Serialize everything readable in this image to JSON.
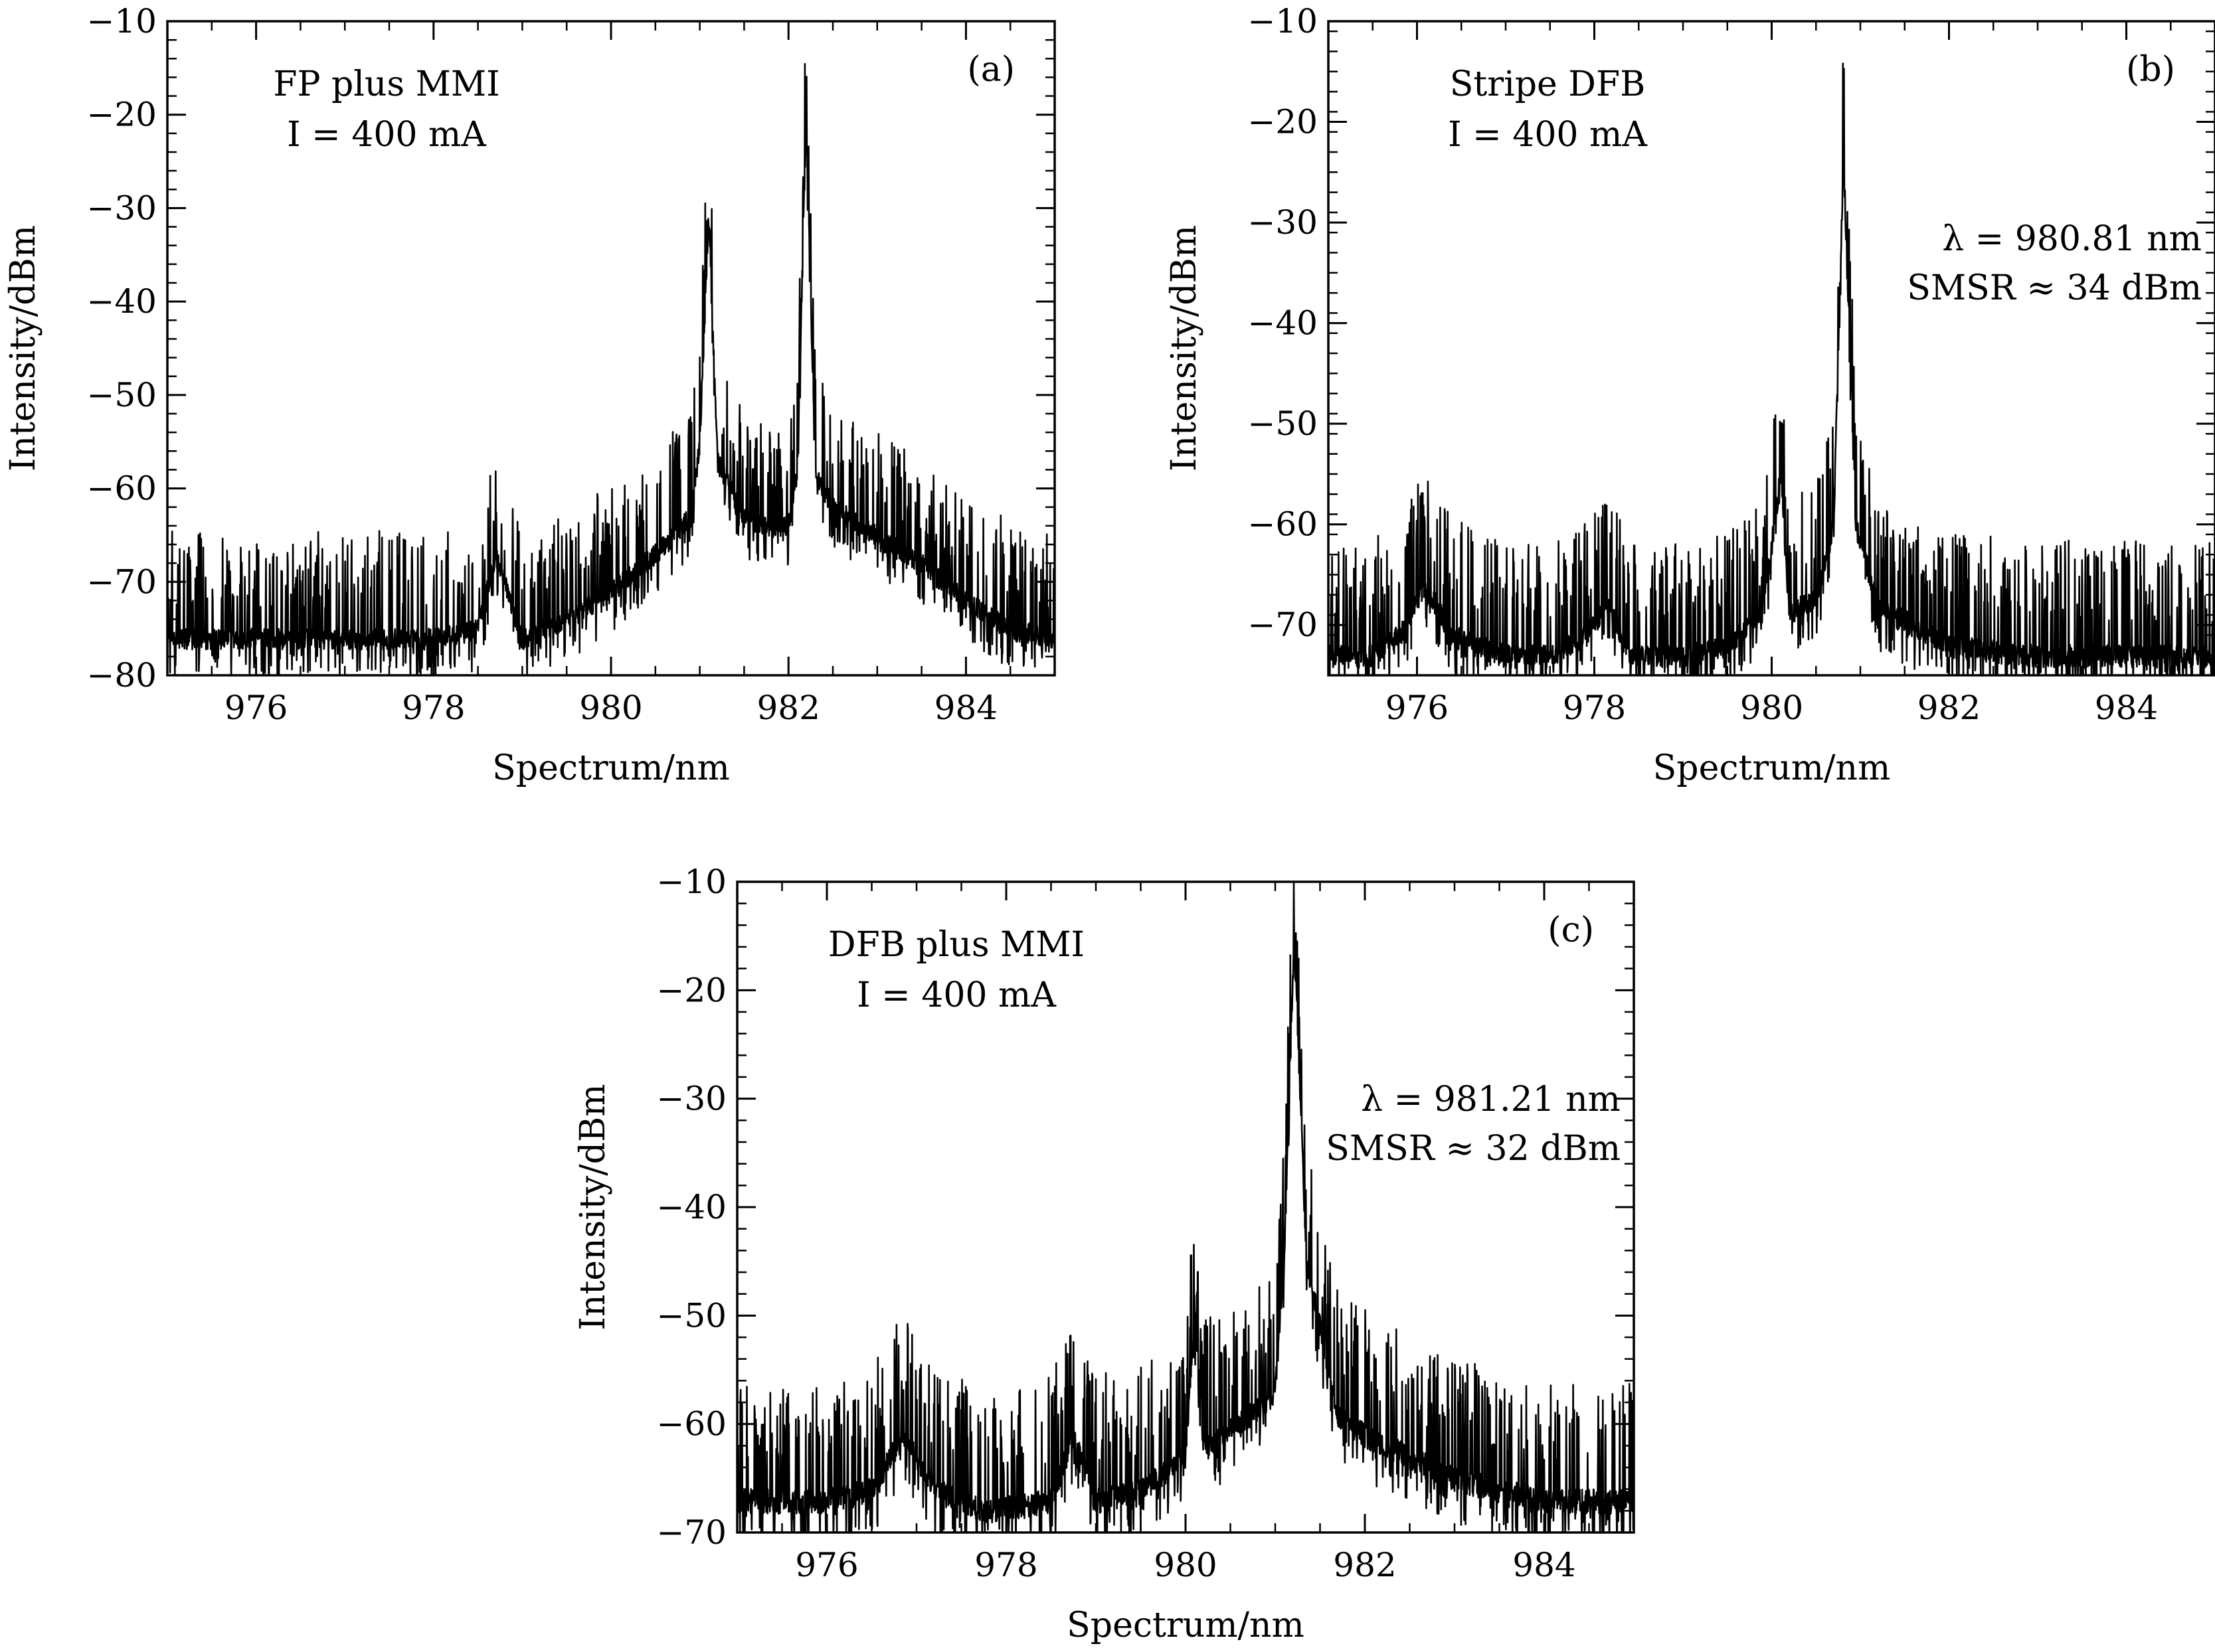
{
  "figure": {
    "panels": [
      {
        "id": "a",
        "panel_label": "(a)",
        "annotation_lines": [
          "FP plus MMI",
          "I = 400 mA"
        ],
        "right_annotation_lines": [],
        "xlabel": "Spectrum/nm",
        "ylabel": "Intensity/dBm"
      },
      {
        "id": "b",
        "panel_label": "(b)",
        "annotation_lines": [
          "Stripe DFB",
          "I = 400 mA"
        ],
        "right_annotation_lines": [
          "λ = 980.81 nm",
          "SMSR ≈ 34 dBm"
        ],
        "xlabel": "Spectrum/nm",
        "ylabel": "Intensity/dBm"
      },
      {
        "id": "c",
        "panel_label": "(c)",
        "annotation_lines": [
          "DFB plus MMI",
          "I = 400 mA"
        ],
        "right_annotation_lines": [
          "λ = 981.21 nm",
          "SMSR ≈ 32 dBm"
        ],
        "xlabel": "Spectrum/nm",
        "ylabel": "Intensity/dBm"
      }
    ]
  },
  "chart_data": [
    {
      "type": "line",
      "panel": "(a)",
      "xlabel": "Spectrum/nm",
      "ylabel": "Intensity/dBm",
      "xlim": [
        975,
        985
      ],
      "ylim": [
        -80,
        -10
      ],
      "xticks": [
        976,
        978,
        980,
        982,
        984
      ],
      "xtick_labels": [
        "976",
        "978",
        "980",
        "982",
        "984"
      ],
      "yticks": [
        -80,
        -70,
        -60,
        -50,
        -40,
        -30,
        -20,
        -10
      ],
      "ytick_labels": [
        "−80",
        "−70",
        "−60",
        "−50",
        "−40",
        "−30",
        "−20",
        "−10"
      ],
      "grid": false,
      "series": [
        {
          "color": "#000000",
          "noise": "dense spectral noise spikes",
          "x": [
            975.0,
            975.5,
            976.0,
            976.5,
            977.0,
            977.5,
            978.0,
            978.5,
            978.7,
            979.0,
            979.5,
            980.0,
            980.5,
            980.9,
            981.0,
            981.1,
            981.2,
            981.5,
            981.8,
            982.0,
            982.1,
            982.2,
            982.3,
            982.5,
            983.0,
            983.5,
            984.0,
            984.5,
            985.0
          ],
          "y": [
            -76,
            -76,
            -76,
            -76,
            -76,
            -76,
            -76,
            -75,
            -67,
            -76,
            -74,
            -71,
            -67,
            -63,
            -55,
            -31,
            -57,
            -63,
            -64,
            -64,
            -58,
            -20,
            -58,
            -62,
            -65,
            -68,
            -72,
            -75,
            -76
          ]
        }
      ]
    },
    {
      "type": "line",
      "panel": "(b)",
      "xlabel": "Spectrum/nm",
      "ylabel": "Intensity/dBm",
      "xlim": [
        975,
        985
      ],
      "ylim": [
        -75,
        -10
      ],
      "xticks": [
        976,
        978,
        980,
        982,
        984
      ],
      "xtick_labels": [
        "976",
        "978",
        "980",
        "982",
        "984"
      ],
      "yticks": [
        -70,
        -60,
        -50,
        -40,
        -30,
        -20,
        -10
      ],
      "ytick_labels": [
        "−70",
        "−60",
        "−50",
        "−40",
        "−30",
        "−20",
        "−10"
      ],
      "grid": false,
      "series": [
        {
          "color": "#000000",
          "noise": "dense spectral noise spikes",
          "x": [
            975.0,
            975.5,
            975.8,
            976.1,
            976.4,
            977.0,
            977.5,
            977.9,
            978.15,
            978.4,
            979.0,
            979.5,
            979.9,
            980.1,
            980.2,
            980.5,
            980.7,
            980.81,
            980.95,
            981.2,
            981.6,
            982.0,
            983.0,
            984.0,
            985.0
          ],
          "y": [
            -73,
            -73,
            -71,
            -66,
            -71,
            -73,
            -73,
            -71,
            -68,
            -73,
            -73,
            -72,
            -69,
            -55,
            -69,
            -67,
            -60,
            -23,
            -60,
            -68,
            -70,
            -72,
            -73,
            -73,
            -73
          ]
        }
      ]
    },
    {
      "type": "line",
      "panel": "(c)",
      "xlabel": "Spectrum/nm",
      "ylabel": "Intensity/dBm",
      "xlim": [
        975,
        985
      ],
      "ylim": [
        -70,
        -10
      ],
      "xticks": [
        976,
        978,
        980,
        982,
        984
      ],
      "xtick_labels": [
        "976",
        "978",
        "980",
        "982",
        "984"
      ],
      "yticks": [
        -70,
        -60,
        -50,
        -40,
        -30,
        -20,
        -10
      ],
      "ytick_labels": [
        "−70",
        "−60",
        "−50",
        "−40",
        "−30",
        "−20",
        "−10"
      ],
      "grid": false,
      "series": [
        {
          "color": "#000000",
          "noise": "dense spectral noise spikes",
          "x": [
            975.0,
            975.5,
            976.0,
            976.5,
            976.85,
            977.2,
            977.8,
            978.5,
            978.75,
            979.0,
            979.5,
            980.0,
            980.1,
            980.2,
            980.6,
            981.0,
            981.1,
            981.21,
            981.35,
            981.7,
            982.0,
            982.5,
            983.0,
            984.0,
            985.0
          ],
          "y": [
            -67,
            -67,
            -67,
            -66,
            -61,
            -66,
            -68,
            -67,
            -61,
            -67,
            -66,
            -63,
            -49,
            -62,
            -60,
            -57,
            -45,
            -15,
            -45,
            -59,
            -61,
            -63,
            -65,
            -67,
            -67
          ]
        }
      ]
    }
  ]
}
